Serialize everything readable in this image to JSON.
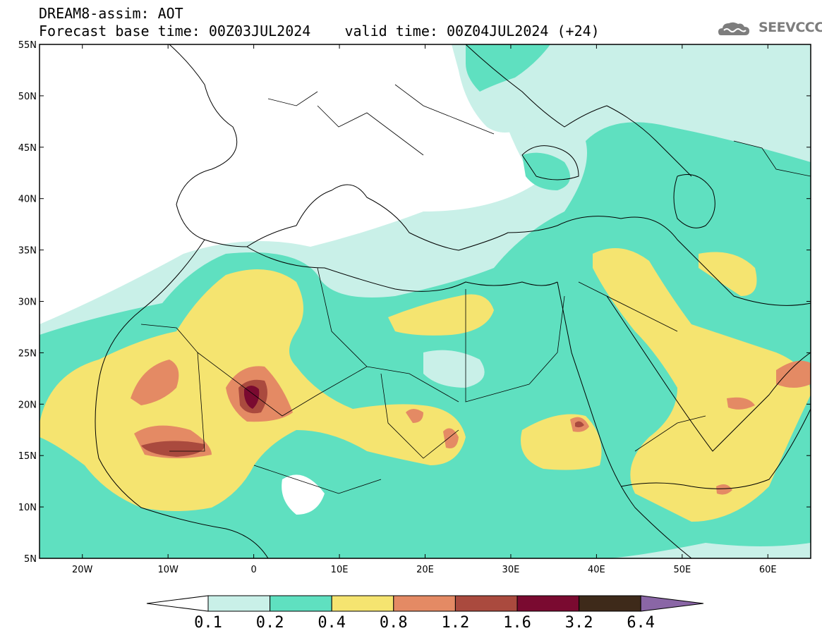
{
  "header": {
    "line1": "DREAM8-assim: AOT",
    "line2": "Forecast base time: 00Z03JUL2024    valid time: 00Z04JUL2024 (+24)"
  },
  "logo": {
    "text": "SEEVCCC",
    "icon": "cloud-logo-icon"
  },
  "map": {
    "variable": "AOT",
    "lat_ticks": [
      "55N",
      "50N",
      "45N",
      "40N",
      "35N",
      "30N",
      "25N",
      "20N",
      "15N",
      "10N",
      "5N"
    ],
    "lon_ticks": [
      "20W",
      "10W",
      "0",
      "10E",
      "20E",
      "30E",
      "40E",
      "50E",
      "60E"
    ],
    "domain": {
      "lon_min": -25,
      "lon_max": 65,
      "lat_min": 5,
      "lat_max": 55
    }
  },
  "colorbar": {
    "labels": [
      "0.1",
      "0.2",
      "0.4",
      "0.8",
      "1.2",
      "1.6",
      "3.2",
      "6.4"
    ],
    "colors": [
      "#ffffff",
      "#c9f0e8",
      "#5fe0c0",
      "#f5e470",
      "#e48a64",
      "#aa4a3e",
      "#7a0a30",
      "#3e2a1a",
      "#8a66a6"
    ]
  },
  "colors": {
    "level_0_1": "#c9f0e8",
    "level_0_2": "#5fe0c0",
    "level_0_4": "#f5e470",
    "level_0_8": "#e48a64",
    "level_1_2": "#aa4a3e",
    "level_1_6": "#7a0a30",
    "level_3_2": "#3e2a1a",
    "level_6_4": "#8a66a6"
  }
}
